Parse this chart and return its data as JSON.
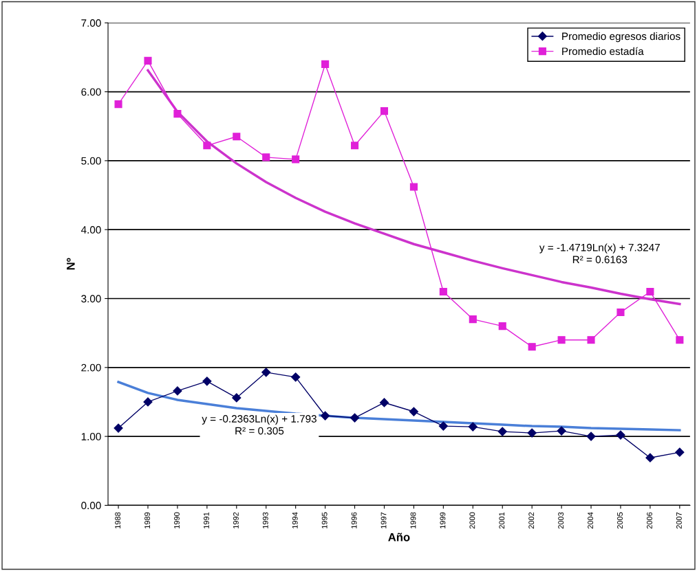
{
  "chart_data": {
    "type": "line",
    "xlabel": "Año",
    "ylabel": "Nº",
    "categories": [
      "1988",
      "1989",
      "1990",
      "1991",
      "1992",
      "1993",
      "1994",
      "1995",
      "1996",
      "1997",
      "1998",
      "1999",
      "2000",
      "2001",
      "2002",
      "2003",
      "2004",
      "2005",
      "2006",
      "2007"
    ],
    "series": [
      {
        "name": "Promedio egresos diarios",
        "color": "#000066",
        "marker": "diamond",
        "values": [
          1.12,
          1.5,
          1.66,
          1.8,
          1.56,
          1.93,
          1.86,
          1.3,
          1.27,
          1.49,
          1.36,
          1.15,
          1.14,
          1.07,
          1.05,
          1.08,
          1.0,
          1.02,
          0.69,
          0.77
        ]
      },
      {
        "name": "Promedio estadía",
        "color": "#e020d8",
        "marker": "square",
        "values": [
          5.82,
          6.45,
          5.68,
          5.22,
          5.35,
          5.05,
          5.02,
          6.4,
          5.22,
          5.72,
          4.62,
          3.1,
          2.7,
          2.6,
          2.3,
          2.4,
          2.4,
          2.8,
          3.1,
          2.4
        ]
      },
      {
        "color": "#cc33cc",
        "marker": "none",
        "values": [
          null,
          6.31,
          5.71,
          5.28,
          4.96,
          4.69,
          4.46,
          4.26,
          4.09,
          3.94,
          3.79,
          3.67,
          3.55,
          3.44,
          3.34,
          3.24,
          3.16,
          3.07,
          2.99,
          2.92
        ]
      },
      {
        "color": "#4a7fd8",
        "marker": "none",
        "values": [
          1.79,
          1.63,
          1.53,
          1.47,
          1.41,
          1.37,
          1.33,
          1.3,
          1.27,
          1.25,
          1.23,
          1.21,
          1.19,
          1.17,
          1.15,
          1.14,
          1.12,
          1.11,
          1.1,
          1.09
        ]
      }
    ],
    "ylim": [
      0,
      7
    ],
    "yticks": [
      {
        "value": 0,
        "label": "0.00"
      },
      {
        "value": 1,
        "label": "1.00"
      },
      {
        "value": 2,
        "label": "2.00"
      },
      {
        "value": 3,
        "label": "3.00"
      },
      {
        "value": 4,
        "label": "4.00"
      },
      {
        "value": 5,
        "label": "5.00"
      },
      {
        "value": 6,
        "label": "6.00"
      },
      {
        "value": 7,
        "label": "7.00"
      }
    ],
    "grid": "y",
    "legend": "top right",
    "line_style": "solid",
    "annotations": [
      "y = -1.4719Ln(x) + 7.3247\nR² = 0.6163",
      "y = -0.2363Ln(x) + 1.793\nR² = 0.305"
    ]
  }
}
